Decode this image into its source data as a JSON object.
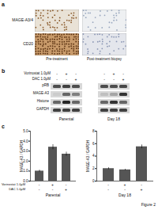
{
  "figure_label": "Figure 2",
  "panel_a": {
    "label": "a",
    "rows": [
      "MAGE-A3/4",
      "CD20"
    ],
    "columns": [
      "Pre-treatment",
      "Post-treatment biopsy"
    ]
  },
  "panel_b": {
    "label": "b",
    "treatments": [
      {
        "name": "Vorinostat 1.0μM",
        "lanes": [
          "-",
          "+",
          "-",
          "-",
          "+",
          "-"
        ]
      },
      {
        "name": "DAC 1.0μM",
        "lanes": [
          "-",
          "-",
          "+",
          "-",
          "-",
          "+"
        ]
      }
    ],
    "rows": [
      "pRB",
      "MAGE-A3",
      "Histone",
      "GAPDH"
    ],
    "groups": [
      "Parental",
      "Day 18"
    ]
  },
  "panel_c": {
    "label": "c",
    "conditions": [
      "Vorinostat 1.0μM",
      "DAC 1.0μM"
    ]
  },
  "chart_data": [
    {
      "type": "bar",
      "title": "Parental",
      "y_label": "MAGE-A3 / GAPDH",
      "categories": [
        null,
        null,
        null
      ],
      "values": [
        1.0,
        3.4,
        2.7
      ],
      "errors": [
        0.1,
        0.25,
        0.2
      ],
      "conditions": [
        [
          "-",
          "+",
          "-"
        ],
        [
          "-",
          "-",
          "+"
        ]
      ],
      "color": "#555555",
      "ylim": [
        0,
        5
      ],
      "yticks": [
        0,
        1,
        2,
        3,
        4,
        5
      ],
      "tick_labels": "y"
    },
    {
      "type": "bar",
      "title": "Day 18",
      "y_label": "MAGE-A3 / GAPDH",
      "categories": [
        null,
        null,
        null
      ],
      "values": [
        2.0,
        1.8,
        5.5
      ],
      "errors": [
        0.15,
        0.1,
        0.3
      ],
      "conditions": [
        [
          "-",
          "+",
          "-"
        ],
        [
          "-",
          "-",
          "+"
        ]
      ],
      "color": "#555555",
      "ylim": [
        0,
        8
      ],
      "yticks": [
        0,
        2,
        4,
        6,
        8
      ],
      "tick_labels": "y"
    }
  ]
}
